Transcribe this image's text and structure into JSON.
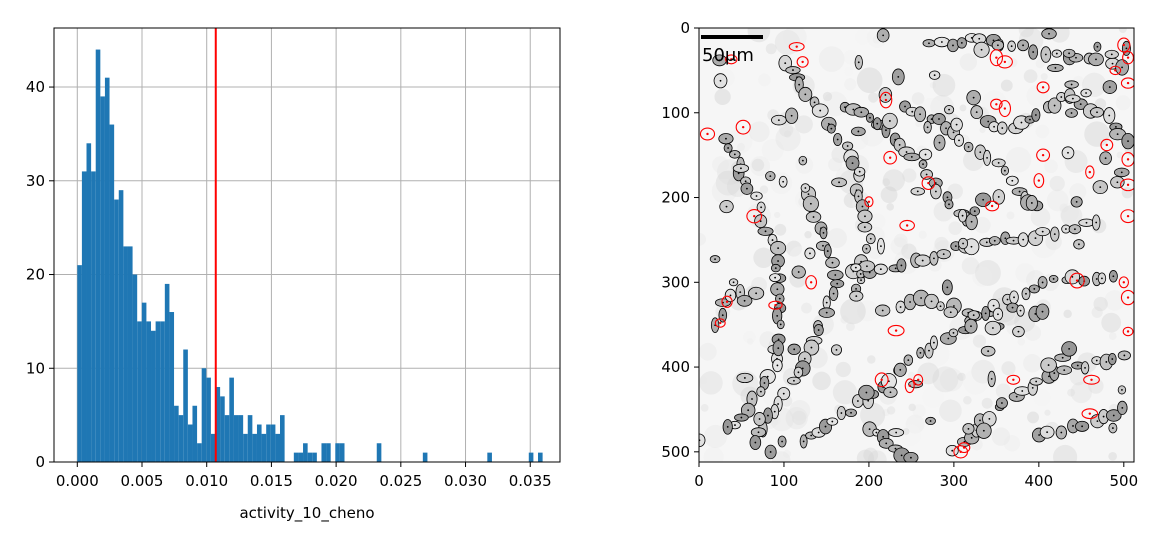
{
  "chart_data": [
    {
      "type": "bar",
      "subtype": "histogram",
      "xlabel": "activity_10_cheno",
      "ylabel": "",
      "title": "",
      "xlim": [
        -0.0018,
        0.0373
      ],
      "ylim": [
        0,
        46.3
      ],
      "xticks": [
        "0.000",
        "0.005",
        "0.010",
        "0.015",
        "0.020",
        "0.025",
        "0.030",
        "0.035"
      ],
      "xtick_values": [
        0.0,
        0.005,
        0.01,
        0.015,
        0.02,
        0.025,
        0.03,
        0.035
      ],
      "yticks": [
        "0",
        "10",
        "20",
        "30",
        "40"
      ],
      "ytick_values": [
        0,
        10,
        20,
        30,
        40
      ],
      "grid": true,
      "bar_color": "#1f77b4",
      "threshold_color": "#ff0000",
      "threshold_x": 0.0107,
      "bin_start": 0.0,
      "bin_width": 0.000356,
      "counts": [
        21,
        31,
        34,
        31,
        44,
        39,
        41,
        36,
        28,
        29,
        23,
        23,
        20,
        15,
        17,
        15,
        14,
        15,
        15,
        19,
        16,
        6,
        5,
        12,
        4,
        6,
        2,
        10,
        9,
        3,
        8,
        7,
        5,
        9,
        5,
        5,
        3,
        5,
        3,
        4,
        3,
        4,
        4,
        3,
        5,
        0,
        0,
        1,
        1,
        2,
        1,
        1,
        0,
        2,
        2,
        0,
        2,
        2,
        0,
        0,
        0,
        0,
        0,
        0,
        0,
        2,
        0,
        0,
        0,
        0,
        0,
        0,
        0,
        0,
        0,
        1,
        0,
        0,
        0,
        0,
        0,
        0,
        0,
        0,
        0,
        0,
        0,
        0,
        0,
        1,
        0,
        0,
        0,
        0,
        0,
        0,
        0,
        0,
        1,
        0,
        1
      ]
    },
    {
      "type": "image",
      "title": "",
      "xlim": [
        0,
        512
      ],
      "ylim": [
        512,
        0
      ],
      "xticks": [
        "0",
        "100",
        "200",
        "300",
        "400",
        "500"
      ],
      "xtick_values": [
        0,
        100,
        200,
        300,
        400,
        500
      ],
      "yticks": [
        "0",
        "100",
        "200",
        "300",
        "400",
        "500"
      ],
      "ytick_values": [
        0,
        100,
        200,
        300,
        400,
        500
      ],
      "scalebar_label": "50μm",
      "outline_color": "#000000",
      "highlight_color": "#ff0000"
    }
  ]
}
